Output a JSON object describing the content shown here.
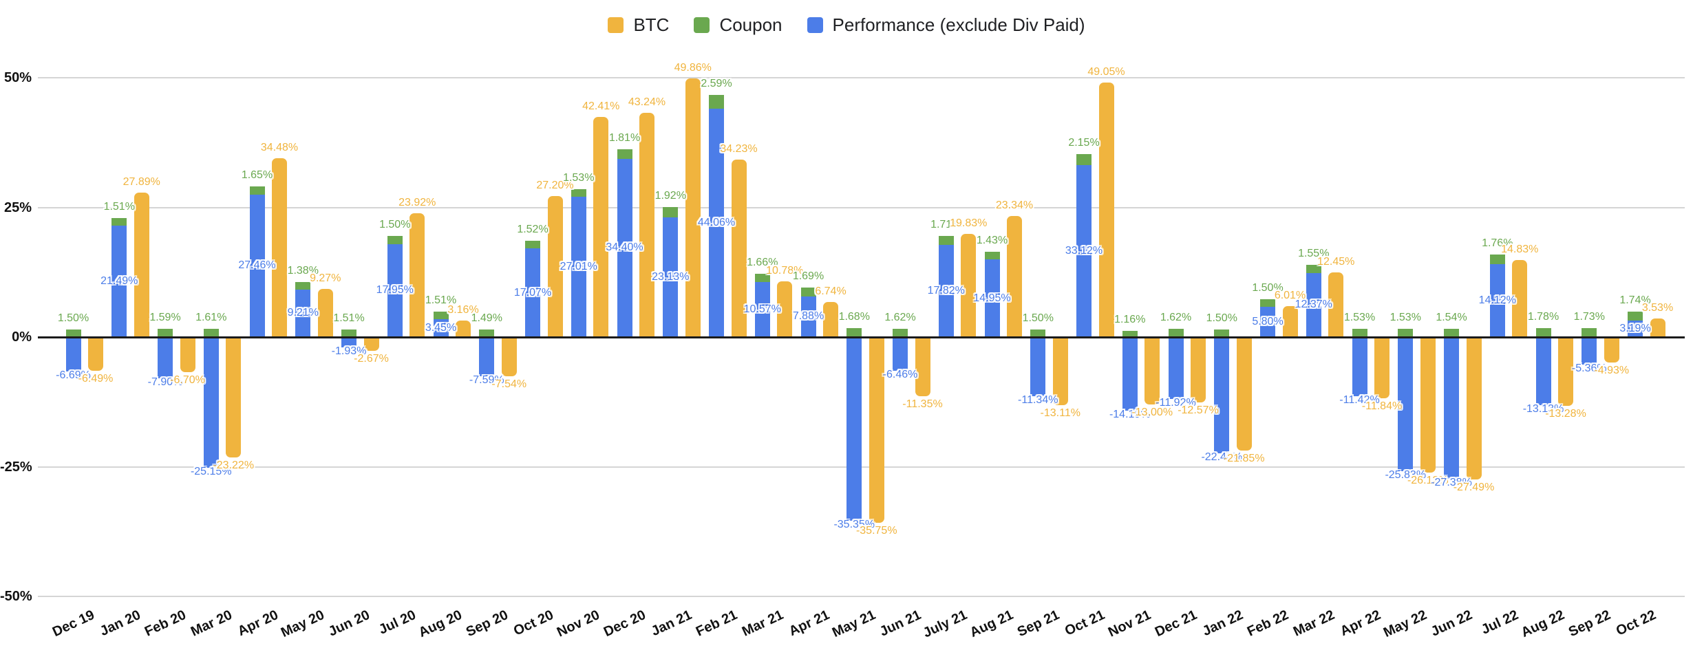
{
  "legend": [
    {
      "label": "BTC",
      "color": "#F0B43E"
    },
    {
      "label": "Coupon",
      "color": "#6AA84F"
    },
    {
      "label": "Performance (exclude Div Paid)",
      "color": "#4C7DE8"
    }
  ],
  "y_axis": {
    "ticks": [
      "50%",
      "25%",
      "0%",
      "-25%",
      "-50%"
    ],
    "values": [
      50,
      25,
      0,
      -25,
      -50
    ]
  },
  "chart_data": {
    "type": "bar",
    "title": "",
    "xlabel": "",
    "ylabel": "",
    "ylim": [
      -50,
      50
    ],
    "grid": "horizontal",
    "legend_position": "top",
    "label_format": "0.00%",
    "structure": "Performance and Coupon are stacked in one column; BTC is a separate column per month",
    "categories": [
      "Dec 19",
      "Jan 20",
      "Feb 20",
      "Mar 20",
      "Apr 20",
      "May 20",
      "Jun 20",
      "Jul 20",
      "Aug 20",
      "Sep 20",
      "Oct 20",
      "Nov 20",
      "Dec 20",
      "Jan 21",
      "Feb 21",
      "Mar 21",
      "Apr 21",
      "May 21",
      "Jun 21",
      "July 21",
      "Aug 21",
      "Sep 21",
      "Oct 21",
      "Nov 21",
      "Dec 21",
      "Jan 22",
      "Feb 22",
      "Mar 22",
      "Apr 22",
      "May 22",
      "Jun 22",
      "Jul 22",
      "Aug 22",
      "Sep 22",
      "Oct 22"
    ],
    "series": [
      {
        "name": "BTC",
        "color": "#F0B43E",
        "values": [
          -6.49,
          27.89,
          -6.7,
          -23.22,
          34.48,
          9.27,
          -2.67,
          23.92,
          3.16,
          -7.54,
          27.2,
          42.41,
          43.24,
          49.86,
          34.23,
          10.78,
          6.74,
          -35.75,
          -11.35,
          19.83,
          23.34,
          -13.11,
          49.05,
          -13.0,
          -12.57,
          -21.85,
          6.01,
          12.45,
          -11.84,
          -26.12,
          -27.49,
          14.83,
          -13.28,
          -4.93,
          3.53
        ]
      },
      {
        "name": "Coupon",
        "color": "#6AA84F",
        "values": [
          1.5,
          1.51,
          1.59,
          1.61,
          1.65,
          1.38,
          1.51,
          1.5,
          1.51,
          1.49,
          1.52,
          1.53,
          1.81,
          1.92,
          2.59,
          1.66,
          1.69,
          1.68,
          1.62,
          1.71,
          1.43,
          1.5,
          2.15,
          1.16,
          1.62,
          1.5,
          1.5,
          1.55,
          1.53,
          1.53,
          1.54,
          1.76,
          1.78,
          1.73,
          1.74
        ]
      },
      {
        "name": "Performance (exclude Div Paid)",
        "color": "#4C7DE8",
        "values": [
          -6.69,
          21.49,
          -7.9,
          -25.15,
          27.46,
          9.21,
          -1.93,
          17.95,
          3.45,
          -7.59,
          17.07,
          27.01,
          34.4,
          23.13,
          44.06,
          10.57,
          7.88,
          -35.35,
          -6.46,
          17.82,
          14.95,
          -11.34,
          33.12,
          -14.19,
          -11.92,
          -22.4,
          5.8,
          12.37,
          -11.42,
          -25.83,
          -27.38,
          14.12,
          -13.13,
          -5.36,
          3.19
        ]
      }
    ]
  }
}
